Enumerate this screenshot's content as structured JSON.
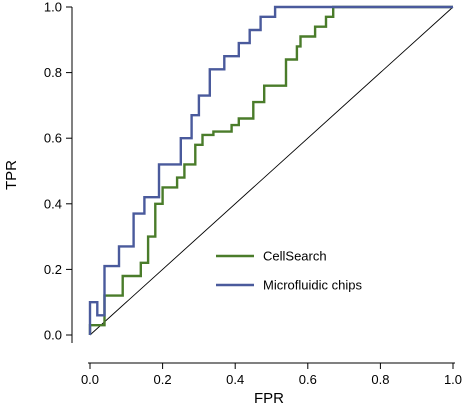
{
  "chart_data": {
    "type": "line",
    "xlabel": "FPR",
    "ylabel": "TPR",
    "xlim": [
      0,
      1
    ],
    "ylim": [
      0,
      1
    ],
    "xticks": [
      "0.0",
      "0.2",
      "0.4",
      "0.6",
      "0.8",
      "1.0"
    ],
    "yticks": [
      "0.0",
      "0.2",
      "0.4",
      "0.6",
      "0.8",
      "1.0"
    ],
    "grid": false,
    "legend_position": "center-right",
    "reference_line": {
      "x": [
        0,
        1
      ],
      "y": [
        0,
        1
      ],
      "color": "#000000"
    },
    "series": [
      {
        "name": "CellSearch",
        "color": "#4a7c2a",
        "x": [
          0,
          0,
          0.04,
          0.04,
          0.09,
          0.09,
          0.14,
          0.14,
          0.16,
          0.16,
          0.18,
          0.18,
          0.2,
          0.2,
          0.24,
          0.24,
          0.26,
          0.26,
          0.29,
          0.29,
          0.31,
          0.31,
          0.34,
          0.34,
          0.39,
          0.39,
          0.41,
          0.41,
          0.45,
          0.45,
          0.48,
          0.48,
          0.54,
          0.54,
          0.57,
          0.57,
          0.58,
          0.58,
          0.62,
          0.62,
          0.65,
          0.65,
          0.67,
          0.67,
          1.0
        ],
        "y": [
          0,
          0.03,
          0.03,
          0.12,
          0.12,
          0.18,
          0.18,
          0.22,
          0.22,
          0.3,
          0.3,
          0.4,
          0.4,
          0.45,
          0.45,
          0.48,
          0.48,
          0.52,
          0.52,
          0.58,
          0.58,
          0.61,
          0.61,
          0.62,
          0.62,
          0.64,
          0.64,
          0.66,
          0.66,
          0.71,
          0.71,
          0.76,
          0.76,
          0.84,
          0.84,
          0.88,
          0.88,
          0.91,
          0.91,
          0.94,
          0.94,
          0.97,
          0.97,
          1.0,
          1.0
        ]
      },
      {
        "name": "Microfluidic chips",
        "color": "#4a5a9c",
        "x": [
          0,
          0,
          0.02,
          0.02,
          0.04,
          0.04,
          0.08,
          0.08,
          0.12,
          0.12,
          0.15,
          0.15,
          0.19,
          0.19,
          0.25,
          0.25,
          0.28,
          0.28,
          0.3,
          0.3,
          0.33,
          0.33,
          0.37,
          0.37,
          0.41,
          0.41,
          0.44,
          0.44,
          0.47,
          0.47,
          0.51,
          0.51,
          0.55,
          0.55,
          0.62,
          0.62,
          0.67,
          0.67,
          1.0
        ],
        "y": [
          0,
          0.1,
          0.1,
          0.06,
          0.06,
          0.21,
          0.21,
          0.27,
          0.27,
          0.37,
          0.37,
          0.42,
          0.42,
          0.52,
          0.52,
          0.6,
          0.6,
          0.67,
          0.67,
          0.73,
          0.73,
          0.81,
          0.81,
          0.85,
          0.85,
          0.89,
          0.89,
          0.93,
          0.93,
          0.97,
          0.97,
          1.0,
          1.0,
          1.0,
          1.0,
          1.0,
          1.0,
          1.0,
          1.0
        ]
      }
    ]
  }
}
